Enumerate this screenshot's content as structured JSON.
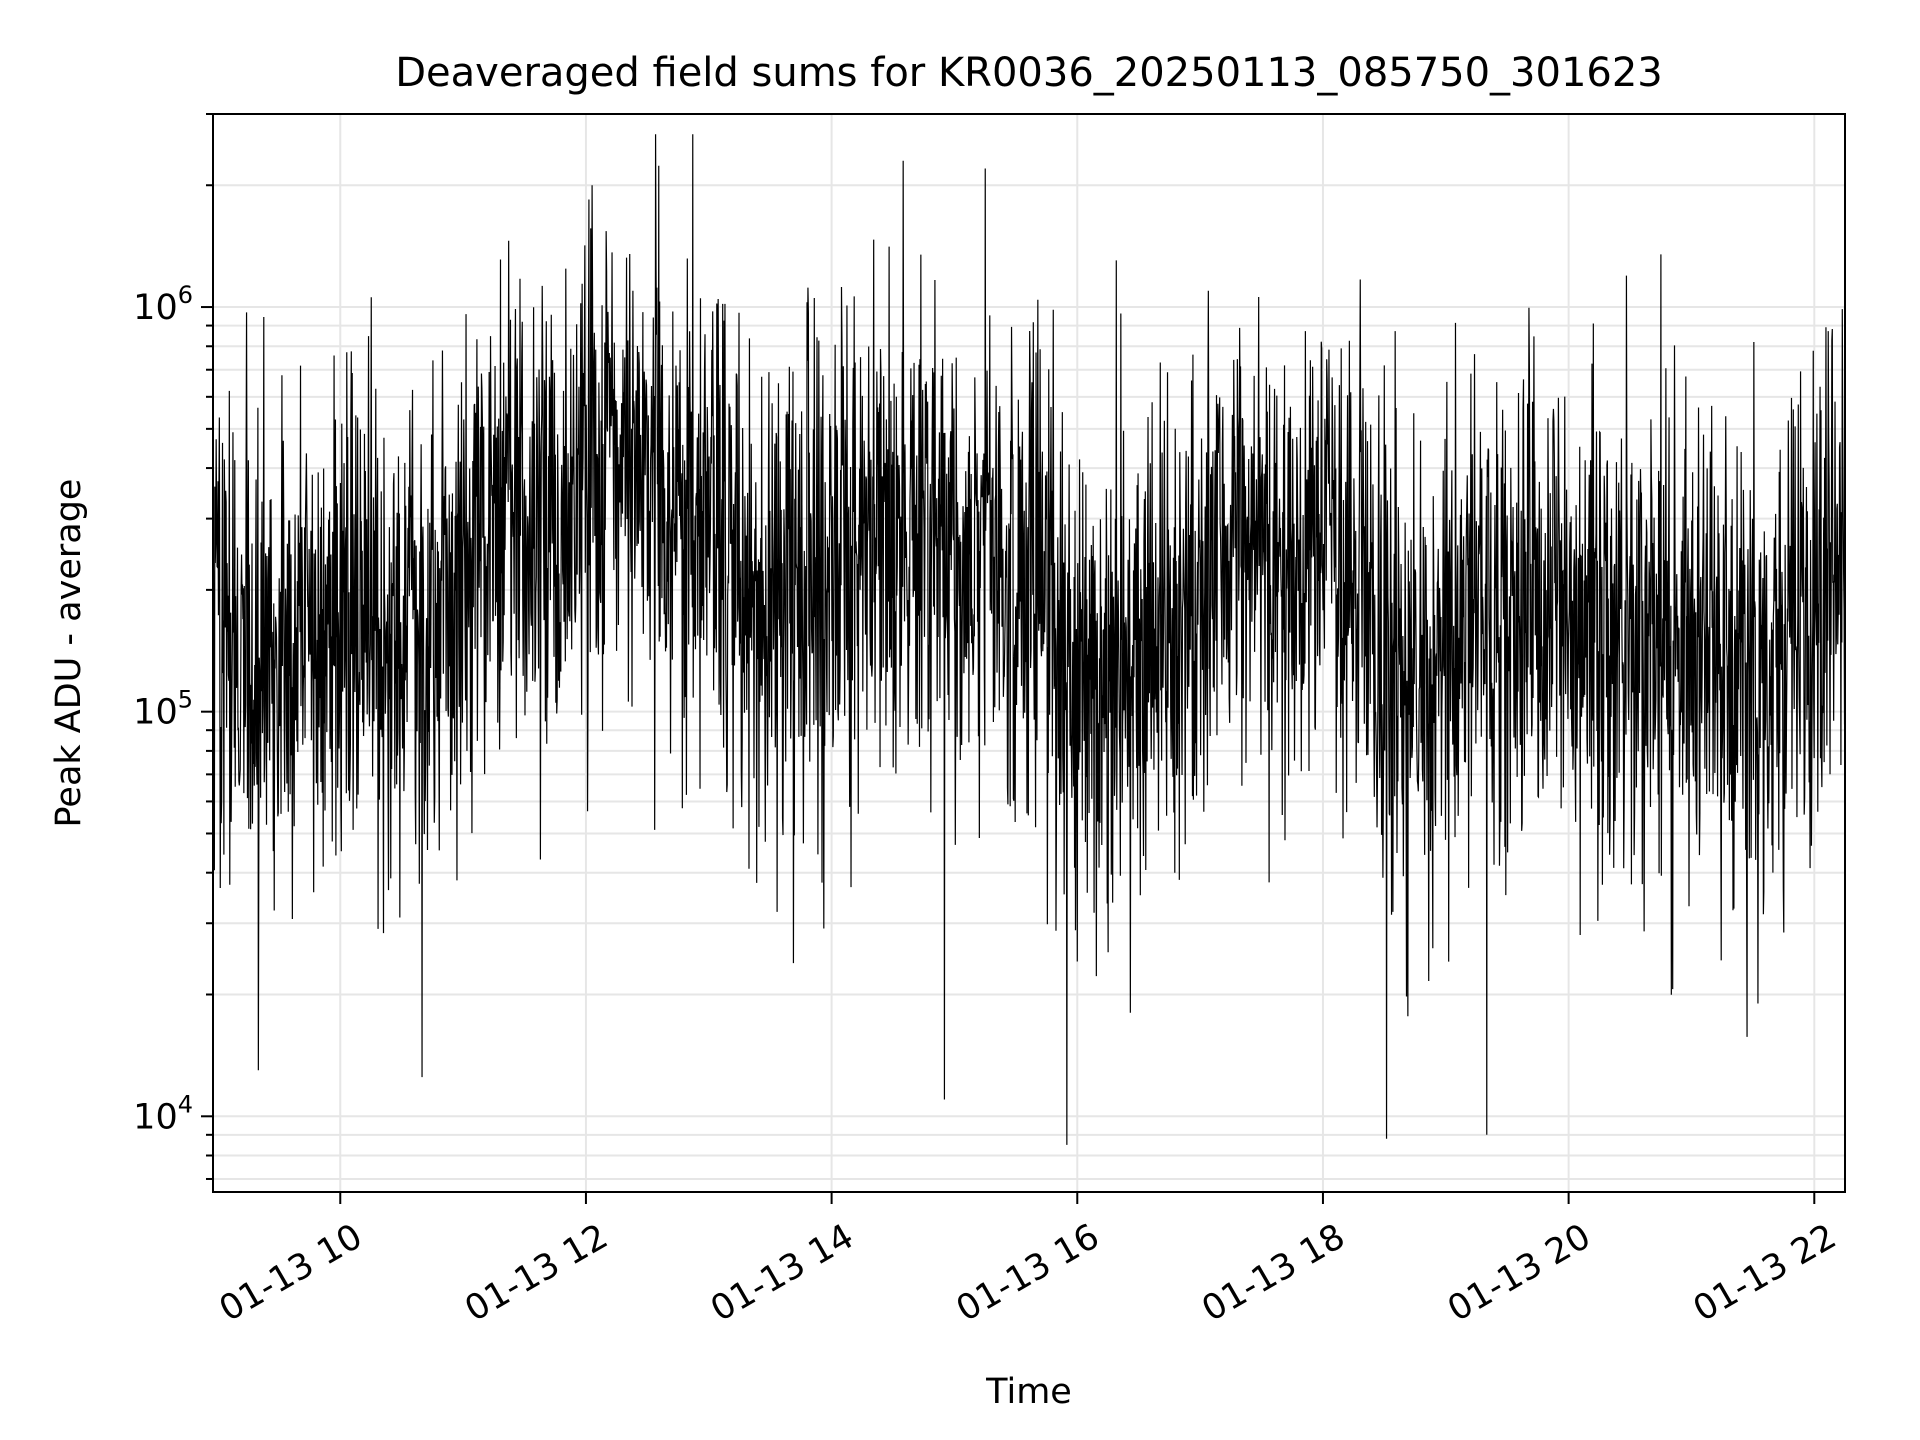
{
  "chart_data": {
    "type": "line",
    "title": "Deaveraged field sums for KR0036_20250113_085750_301623",
    "xlabel": "Time",
    "ylabel": "Peak ADU - average",
    "x_start": "2025-01-13T08:57:50",
    "x_end": "2025-01-13T22:15:00",
    "xlim": [
      "2025-01-13T08:57:50",
      "2025-01-13T22:15:00"
    ],
    "ylim": [
      6500,
      3000000
    ],
    "yscale": "log",
    "grid": true,
    "x_ticks": [
      {
        "value": "2025-01-13T10:00:00",
        "label": "01-13 10"
      },
      {
        "value": "2025-01-13T12:00:00",
        "label": "01-13 12"
      },
      {
        "value": "2025-01-13T14:00:00",
        "label": "01-13 14"
      },
      {
        "value": "2025-01-13T16:00:00",
        "label": "01-13 16"
      },
      {
        "value": "2025-01-13T18:00:00",
        "label": "01-13 18"
      },
      {
        "value": "2025-01-13T20:00:00",
        "label": "01-13 20"
      },
      {
        "value": "2025-01-13T22:00:00",
        "label": "01-13 22"
      }
    ],
    "y_ticks": [
      {
        "value": 10000,
        "base": "10",
        "exp": "4"
      },
      {
        "value": 100000,
        "base": "10",
        "exp": "5"
      },
      {
        "value": 1000000,
        "base": "10",
        "exp": "6"
      }
    ],
    "series": [
      {
        "color": "#000000",
        "x": [
          "2025-01-13T09:00",
          "2025-01-13T09:20",
          "2025-01-13T09:40",
          "2025-01-13T10:00",
          "2025-01-13T10:20",
          "2025-01-13T10:40",
          "2025-01-13T11:00",
          "2025-01-13T11:20",
          "2025-01-13T11:40",
          "2025-01-13T12:00",
          "2025-01-13T12:20",
          "2025-01-13T12:40",
          "2025-01-13T13:00",
          "2025-01-13T13:20",
          "2025-01-13T13:40",
          "2025-01-13T14:00",
          "2025-01-13T14:20",
          "2025-01-13T14:40",
          "2025-01-13T15:00",
          "2025-01-13T15:20",
          "2025-01-13T15:40",
          "2025-01-13T16:00",
          "2025-01-13T16:20",
          "2025-01-13T16:40",
          "2025-01-13T17:00",
          "2025-01-13T17:20",
          "2025-01-13T17:40",
          "2025-01-13T18:00",
          "2025-01-13T18:20",
          "2025-01-13T18:40",
          "2025-01-13T19:00",
          "2025-01-13T19:20",
          "2025-01-13T19:40",
          "2025-01-13T20:00",
          "2025-01-13T20:20",
          "2025-01-13T20:40",
          "2025-01-13T21:00",
          "2025-01-13T21:20",
          "2025-01-13T21:40",
          "2025-01-13T22:00",
          "2025-01-13T22:15"
        ],
        "y": [
          200000,
          120000,
          150000,
          160000,
          180000,
          160000,
          230000,
          280000,
          300000,
          380000,
          400000,
          330000,
          300000,
          200000,
          190000,
          230000,
          260000,
          240000,
          240000,
          230000,
          200000,
          130000,
          120000,
          160000,
          200000,
          250000,
          260000,
          250000,
          170000,
          120000,
          140000,
          170000,
          180000,
          190000,
          160000,
          140000,
          150000,
          140000,
          110000,
          170000,
          300000
        ]
      }
    ],
    "notable_peaks": [
      {
        "x": "2025-01-13T12:03",
        "y": 2000000
      },
      {
        "x": "2025-01-13T14:35",
        "y": 2300000
      },
      {
        "x": "2025-01-13T15:15",
        "y": 2200000
      },
      {
        "x": "2025-01-13T20:45",
        "y": 1350000
      }
    ],
    "notable_troughs": [
      {
        "x": "2025-01-13T09:20",
        "y": 13000
      },
      {
        "x": "2025-01-13T10:40",
        "y": 12500
      },
      {
        "x": "2025-01-13T14:55",
        "y": 11000
      },
      {
        "x": "2025-01-13T15:55",
        "y": 8500
      },
      {
        "x": "2025-01-13T18:31",
        "y": 8800
      },
      {
        "x": "2025-01-13T19:20",
        "y": 9000
      }
    ]
  }
}
